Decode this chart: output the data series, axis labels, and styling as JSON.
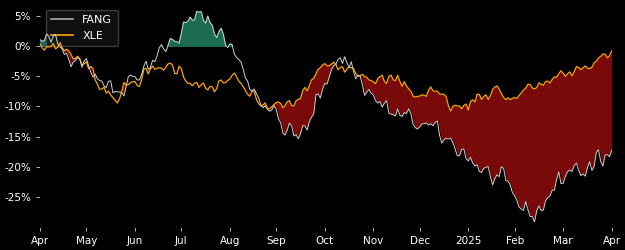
{
  "background_color": "#000000",
  "plot_bg_color": "#000000",
  "fang_color": "#d0d0d0",
  "xle_color": "#ffa500",
  "fill_teal_color": "#1a6b50",
  "fill_red_color": "#7a0a0a",
  "legend_labels": [
    "FANG",
    "XLE"
  ],
  "legend_fang_color": "#aaaaaa",
  "legend_xle_color": "#ffa500",
  "ylim": [
    -0.3,
    0.07
  ],
  "yticks": [
    0.05,
    0.0,
    -0.05,
    -0.1,
    -0.15,
    -0.2,
    -0.25
  ],
  "ytick_labels": [
    "5%",
    "0%",
    "-5%",
    "-10%",
    "-15%",
    "-20%",
    "-25%"
  ],
  "xtick_labels": [
    "Apr",
    "May",
    "Jun",
    "Jul",
    "Aug",
    "Sep",
    "Oct",
    "Nov",
    "Dec",
    "2025",
    "Feb",
    "Mar",
    "Apr"
  ],
  "n_points": 260
}
